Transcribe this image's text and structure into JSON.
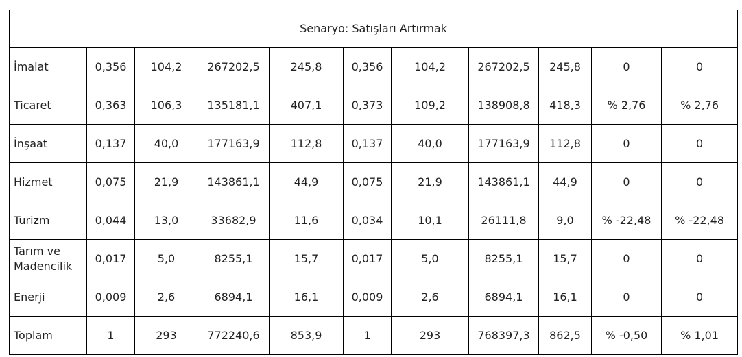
{
  "table": {
    "title": "Senaryo: Satışları Artırmak",
    "rows": [
      [
        "İmalat",
        "0,356",
        "104,2",
        "267202,5",
        "245,8",
        "0,356",
        "104,2",
        "267202,5",
        "245,8",
        "0",
        "0"
      ],
      [
        "Ticaret",
        "0,363",
        "106,3",
        "135181,1",
        "407,1",
        "0,373",
        "109,2",
        "138908,8",
        "418,3",
        "% 2,76",
        "% 2,76"
      ],
      [
        "İnşaat",
        "0,137",
        "40,0",
        "177163,9",
        "112,8",
        "0,137",
        "40,0",
        "177163,9",
        "112,8",
        "0",
        "0"
      ],
      [
        "Hizmet",
        "0,075",
        "21,9",
        "143861,1",
        "44,9",
        "0,075",
        "21,9",
        "143861,1",
        "44,9",
        "0",
        "0"
      ],
      [
        "Turizm",
        "0,044",
        "13,0",
        "33682,9",
        "11,6",
        "0,034",
        "10,1",
        "26111,8",
        "9,0",
        "% -22,48",
        "% -22,48"
      ],
      [
        "Tarım ve Madencilik",
        "0,017",
        "5,0",
        "8255,1",
        "15,7",
        "0,017",
        "5,0",
        "8255,1",
        "15,7",
        "0",
        "0"
      ],
      [
        "Enerji",
        "0,009",
        "2,6",
        "6894,1",
        "16,1",
        "0,009",
        "2,6",
        "6894,1",
        "16,1",
        "0",
        "0"
      ],
      [
        "Toplam",
        "1",
        "293",
        "772240,6",
        "853,9",
        "1",
        "293",
        "768397,3",
        "862,5",
        "% -0,50",
        "% 1,01"
      ]
    ]
  }
}
